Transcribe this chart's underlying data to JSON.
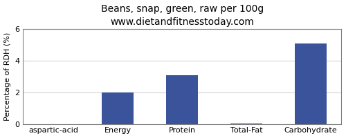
{
  "title": "Beans, snap, green, raw per 100g",
  "subtitle": "www.dietandfitnesstoday.com",
  "categories": [
    "aspartic-acid",
    "Energy",
    "Protein",
    "Total-Fat",
    "Carbohydrate"
  ],
  "values": [
    0,
    2.0,
    3.07,
    0.04,
    5.07
  ],
  "bar_color": "#3a539b",
  "ylabel": "Percentage of RDH (%)",
  "ylim": [
    0,
    6
  ],
  "yticks": [
    0,
    2,
    4,
    6
  ],
  "background_color": "#ffffff",
  "title_fontsize": 10,
  "subtitle_fontsize": 9,
  "ylabel_fontsize": 8,
  "xlabel_fontsize": 8
}
